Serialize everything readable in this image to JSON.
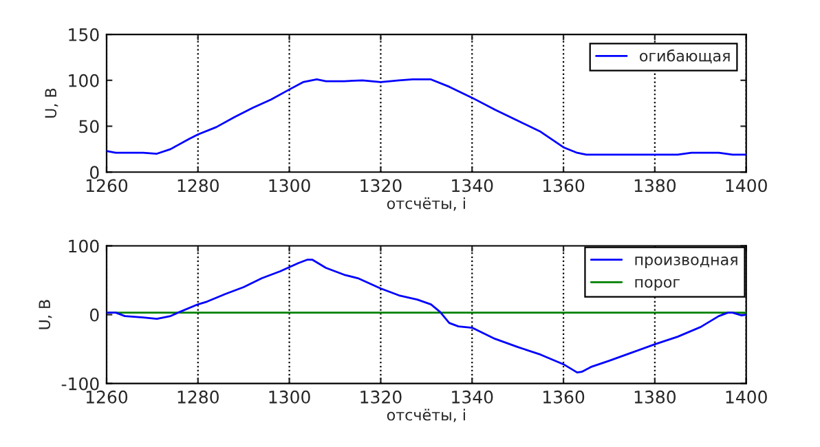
{
  "chart_data": [
    {
      "type": "line",
      "xlabel": "отсчёты, i",
      "ylabel": "U, В",
      "xlim": [
        1260,
        1400
      ],
      "xticks": [
        1260,
        1280,
        1300,
        1320,
        1340,
        1360,
        1380,
        1400
      ],
      "ylim": [
        0,
        150
      ],
      "yticks": [
        0,
        50,
        100,
        150
      ],
      "grid": "x",
      "legend": "top right",
      "series": [
        {
          "name": "огибающая",
          "color": "#0000ff",
          "x": [
            1260,
            1262,
            1268,
            1271,
            1274,
            1278,
            1280,
            1284,
            1288,
            1292,
            1296,
            1300,
            1303,
            1306,
            1308,
            1312,
            1316,
            1320,
            1324,
            1327,
            1331,
            1335,
            1340,
            1345,
            1350,
            1355,
            1360,
            1363,
            1365,
            1370,
            1380,
            1385,
            1388,
            1394,
            1397,
            1400
          ],
          "values": [
            23,
            21,
            21,
            20,
            25,
            36,
            41,
            49,
            60,
            70,
            79,
            90,
            98,
            101,
            99,
            99,
            100,
            98,
            100,
            101,
            101,
            93,
            81,
            68,
            56,
            44,
            27,
            21,
            19,
            19,
            19,
            19,
            21,
            21,
            19,
            19
          ]
        }
      ]
    },
    {
      "type": "line",
      "xlabel": "отсчёты, i",
      "ylabel": "U, В",
      "xlim": [
        1260,
        1400
      ],
      "xticks": [
        1260,
        1280,
        1300,
        1320,
        1340,
        1360,
        1380,
        1400
      ],
      "ylim": [
        -100,
        100
      ],
      "yticks": [
        -100,
        0,
        100
      ],
      "grid": "x",
      "legend": "top right",
      "series": [
        {
          "name": "производная",
          "color": "#0000ff",
          "x": [
            1260,
            1262,
            1264,
            1268,
            1271,
            1274,
            1276,
            1280,
            1282,
            1286,
            1290,
            1294,
            1298,
            1302,
            1304,
            1305,
            1308,
            1312,
            1315,
            1320,
            1324,
            1328,
            1331,
            1333,
            1335,
            1337,
            1340,
            1345,
            1350,
            1355,
            1360,
            1363,
            1364,
            1366,
            1370,
            1375,
            1380,
            1385,
            1390,
            1394,
            1396,
            1397,
            1399,
            1400
          ],
          "values": [
            3,
            3,
            -2,
            -4,
            -6,
            -2,
            4,
            15,
            19,
            30,
            40,
            53,
            63,
            75,
            80,
            80,
            68,
            58,
            53,
            38,
            28,
            22,
            15,
            4,
            -12,
            -17,
            -19,
            -35,
            -47,
            -58,
            -72,
            -84,
            -83,
            -76,
            -67,
            -55,
            -43,
            -32,
            -18,
            -2,
            3,
            3,
            -1,
            0
          ]
        },
        {
          "name": "порог",
          "color": "#008000",
          "x": [
            1260,
            1400
          ],
          "values": [
            3,
            3
          ]
        }
      ]
    }
  ]
}
